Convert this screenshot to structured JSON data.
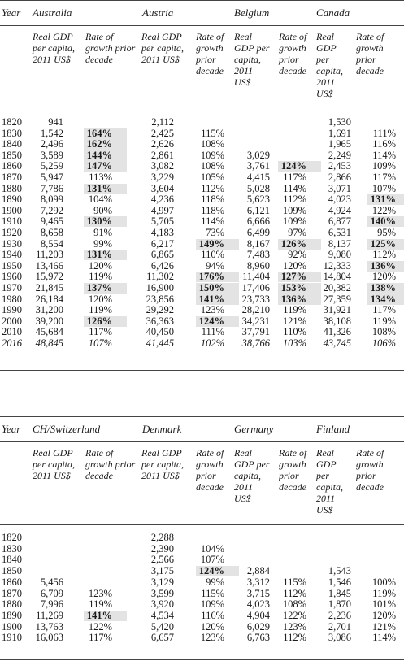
{
  "panels": [
    {
      "year_header": "Year",
      "countries": [
        "Australia",
        "Austria",
        "Belgium",
        "Canada"
      ],
      "subheaders": [
        [
          "Real GDP",
          "per capita,",
          "2011 US$"
        ],
        [
          "Rate of",
          "growth prior",
          "decade"
        ],
        [
          "Real GDP",
          "per capita,",
          "2011 US$"
        ],
        [
          "Rate of",
          "growth",
          "prior",
          "decade"
        ],
        [
          "Real",
          "GDP per",
          "capita,",
          "2011",
          "US$"
        ],
        [
          "Rate of",
          "growth",
          "prior",
          "decade"
        ],
        [
          "Real",
          "GDP",
          "per",
          "capita,",
          "2011",
          "US$"
        ],
        [
          "Rate of",
          "growth",
          "prior decade"
        ]
      ],
      "rows": [
        {
          "year": "1820",
          "cells": [
            "941",
            "",
            "2,112",
            "",
            "",
            "",
            "1,530",
            ""
          ]
        },
        {
          "year": "1830",
          "cells": [
            "1,542",
            "164%",
            "2,425",
            "115%",
            "",
            "",
            "1,691",
            "111%"
          ]
        },
        {
          "year": "1840",
          "cells": [
            "2,496",
            "162%",
            "2,626",
            "108%",
            "",
            "",
            "1,965",
            "116%"
          ]
        },
        {
          "year": "1850",
          "cells": [
            "3,589",
            "144%",
            "2,861",
            "109%",
            "3,029",
            "",
            "2,249",
            "114%"
          ]
        },
        {
          "year": "1860",
          "cells": [
            "5,259",
            "147%",
            "3,082",
            "108%",
            "3,761",
            "124%",
            "2,453",
            "109%"
          ]
        },
        {
          "year": "1870",
          "cells": [
            "5,947",
            "113%",
            "3,229",
            "105%",
            "4,415",
            "117%",
            "2,866",
            "117%"
          ]
        },
        {
          "year": "1880",
          "cells": [
            "7,786",
            "131%",
            "3,604",
            "112%",
            "5,028",
            "114%",
            "3,071",
            "107%"
          ]
        },
        {
          "year": "1890",
          "cells": [
            "8,099",
            "104%",
            "4,236",
            "118%",
            "5,623",
            "112%",
            "4,023",
            "131%"
          ]
        },
        {
          "year": "1900",
          "cells": [
            "7,292",
            "90%",
            "4,997",
            "118%",
            "6,121",
            "109%",
            "4,924",
            "122%"
          ]
        },
        {
          "year": "1910",
          "cells": [
            "9,465",
            "130%",
            "5,705",
            "114%",
            "6,666",
            "109%",
            "6,877",
            "140%"
          ]
        },
        {
          "year": "1920",
          "cells": [
            "8,658",
            "91%",
            "4,183",
            "73%",
            "6,499",
            "97%",
            "6,531",
            "95%"
          ]
        },
        {
          "year": "1930",
          "cells": [
            "8,554",
            "99%",
            "6,217",
            "149%",
            "8,167",
            "126%",
            "8,137",
            "125%"
          ]
        },
        {
          "year": "1940",
          "cells": [
            "11,203",
            "131%",
            "6,865",
            "110%",
            "7,483",
            "92%",
            "9,080",
            "112%"
          ]
        },
        {
          "year": "1950",
          "cells": [
            "13,466",
            "120%",
            "6,426",
            "94%",
            "8,960",
            "120%",
            "12,333",
            "136%"
          ]
        },
        {
          "year": "1960",
          "cells": [
            "15,972",
            "119%",
            "11,302",
            "176%",
            "11,404",
            "127%",
            "14,804",
            "120%"
          ]
        },
        {
          "year": "1970",
          "cells": [
            "21,845",
            "137%",
            "16,900",
            "150%",
            "17,406",
            "153%",
            "20,382",
            "138%"
          ]
        },
        {
          "year": "1980",
          "cells": [
            "26,184",
            "120%",
            "23,856",
            "141%",
            "23,733",
            "136%",
            "27,359",
            "134%"
          ]
        },
        {
          "year": "1990",
          "cells": [
            "31,200",
            "119%",
            "29,292",
            "123%",
            "28,210",
            "119%",
            "31,921",
            "117%"
          ]
        },
        {
          "year": "2000",
          "cells": [
            "39,200",
            "126%",
            "36,363",
            "124%",
            "34,231",
            "121%",
            "38,108",
            "119%"
          ]
        },
        {
          "year": "2010",
          "cells": [
            "45,684",
            "117%",
            "40,450",
            "111%",
            "37,791",
            "110%",
            "41,326",
            "108%"
          ]
        },
        {
          "year": "2016",
          "cells": [
            "48,845",
            "107%",
            "41,445",
            "102%",
            "38,766",
            "103%",
            "43,745",
            "106%"
          ]
        }
      ]
    },
    {
      "year_header": "Year",
      "countries": [
        "CH/Switzerland",
        "Denmark",
        "Germany",
        "Finland"
      ],
      "subheaders": [
        [
          "Real GDP",
          "per capita,",
          "2011 US$"
        ],
        [
          "Rate of",
          "growth prior",
          "decade"
        ],
        [
          "Real GDP",
          "per capita,",
          "2011 US$"
        ],
        [
          "Rate of",
          "growth",
          "prior",
          "decade"
        ],
        [
          "Real",
          "GDP per",
          "capita,",
          "2011",
          "US$"
        ],
        [
          "Rate of",
          "growth",
          "prior",
          "decade"
        ],
        [
          "Real",
          "GDP",
          "per",
          "capita,",
          "2011",
          "US$"
        ],
        [
          "Rate of",
          "growth",
          "prior",
          "decade"
        ]
      ],
      "rows": [
        {
          "year": "1820",
          "cells": [
            "",
            "",
            "2,288",
            "",
            "",
            "",
            "",
            ""
          ]
        },
        {
          "year": "1830",
          "cells": [
            "",
            "",
            "2,390",
            "104%",
            "",
            "",
            "",
            ""
          ]
        },
        {
          "year": "1840",
          "cells": [
            "",
            "",
            "2,566",
            "107%",
            "",
            "",
            "",
            ""
          ]
        },
        {
          "year": "1850",
          "cells": [
            "",
            "",
            "3,175",
            "124%",
            "2,884",
            "",
            "1,543",
            ""
          ]
        },
        {
          "year": "1860",
          "cells": [
            "5,456",
            "",
            "3,129",
            "99%",
            "3,312",
            "115%",
            "1,546",
            "100%"
          ]
        },
        {
          "year": "1870",
          "cells": [
            "6,709",
            "123%",
            "3,599",
            "115%",
            "3,715",
            "112%",
            "1,845",
            "119%"
          ]
        },
        {
          "year": "1880",
          "cells": [
            "7,996",
            "119%",
            "3,920",
            "109%",
            "4,023",
            "108%",
            "1,870",
            "101%"
          ]
        },
        {
          "year": "1890",
          "cells": [
            "11,269",
            "141%",
            "4,534",
            "116%",
            "4,904",
            "122%",
            "2,236",
            "120%"
          ]
        },
        {
          "year": "1900",
          "cells": [
            "13,763",
            "122%",
            "5,420",
            "120%",
            "6,029",
            "123%",
            "2,701",
            "121%"
          ]
        },
        {
          "year": "1910",
          "cells": [
            "16,063",
            "117%",
            "6,657",
            "123%",
            "6,763",
            "112%",
            "3,086",
            "114%"
          ]
        }
      ]
    }
  ],
  "emphasis": [
    {
      "panel": 0,
      "year": "1830",
      "col": 1,
      "bold": true,
      "highlight": true
    },
    {
      "panel": 0,
      "year": "1840",
      "col": 1,
      "bold": true,
      "highlight": true
    },
    {
      "panel": 0,
      "year": "1850",
      "col": 1,
      "bold": true,
      "highlight": true
    },
    {
      "panel": 0,
      "year": "1860",
      "col": 1,
      "bold": true,
      "highlight": true
    },
    {
      "panel": 0,
      "year": "1860",
      "col": 5,
      "bold": true,
      "highlight": true
    },
    {
      "panel": 0,
      "year": "1880",
      "col": 1,
      "bold": true,
      "highlight": true
    },
    {
      "panel": 0,
      "year": "1890",
      "col": 7,
      "bold": true,
      "highlight": true
    },
    {
      "panel": 0,
      "year": "1910",
      "col": 1,
      "bold": true,
      "highlight": true
    },
    {
      "panel": 0,
      "year": "1910",
      "col": 7,
      "bold": true,
      "highlight": true
    },
    {
      "panel": 0,
      "year": "1930",
      "col": 3,
      "bold": true,
      "highlight": true
    },
    {
      "panel": 0,
      "year": "1930",
      "col": 5,
      "bold": true,
      "highlight": true
    },
    {
      "panel": 0,
      "year": "1930",
      "col": 7,
      "bold": true,
      "highlight": true
    },
    {
      "panel": 0,
      "year": "1940",
      "col": 1,
      "bold": true,
      "highlight": true
    },
    {
      "panel": 0,
      "year": "1950",
      "col": 7,
      "bold": true,
      "highlight": true
    },
    {
      "panel": 0,
      "year": "1960",
      "col": 3,
      "bold": true,
      "highlight": true
    },
    {
      "panel": 0,
      "year": "1960",
      "col": 5,
      "bold": true,
      "highlight": true
    },
    {
      "panel": 0,
      "year": "1970",
      "col": 1,
      "bold": true,
      "highlight": true
    },
    {
      "panel": 0,
      "year": "1970",
      "col": 3,
      "bold": true,
      "highlight": true
    },
    {
      "panel": 0,
      "year": "1970",
      "col": 5,
      "bold": true,
      "highlight": true
    },
    {
      "panel": 0,
      "year": "1970",
      "col": 7,
      "bold": true,
      "highlight": true
    },
    {
      "panel": 0,
      "year": "1980",
      "col": 3,
      "bold": true,
      "highlight": true
    },
    {
      "panel": 0,
      "year": "1980",
      "col": 5,
      "bold": true,
      "highlight": true
    },
    {
      "panel": 0,
      "year": "1980",
      "col": 7,
      "bold": true,
      "highlight": true
    },
    {
      "panel": 0,
      "year": "2000",
      "col": 1,
      "bold": true,
      "highlight": true
    },
    {
      "panel": 0,
      "year": "2000",
      "col": 3,
      "bold": true,
      "highlight": true
    },
    {
      "panel": 1,
      "year": "1850",
      "col": 3,
      "bold": true,
      "highlight": true
    },
    {
      "panel": 1,
      "year": "1890",
      "col": 1,
      "bold": true,
      "highlight": true
    }
  ],
  "colors": {
    "highlight": "#e3e3e3",
    "text": "#1a1a1a",
    "rule": "#444444"
  }
}
